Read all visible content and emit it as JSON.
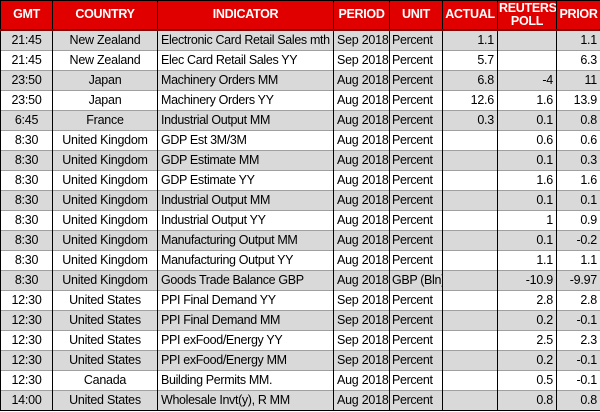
{
  "title": "Economic calendar release table",
  "colors": {
    "header_bg": "#e00000",
    "header_text": "#ffffff",
    "row_shaded": "#d9d9d9",
    "row_plain": "#ffffff",
    "grid_dark": "#000000",
    "grid_light": "#a0a0a0",
    "header_underline": "#8a0000",
    "cell_text": "#000000"
  },
  "chart_data": {
    "type": "table",
    "legend_position": "none",
    "grid": true,
    "columns": [
      "GMT",
      "COUNTRY",
      "INDICATOR",
      "PERIOD",
      "UNIT",
      "ACTUAL",
      "REUTERS POLL",
      "PRIOR"
    ],
    "rows": [
      [
        "21:45",
        "New Zealand",
        "Electronic Card Retail Sales mth",
        "Sep 2018",
        "Percent",
        "1.1",
        "",
        "1.1"
      ],
      [
        "21:45",
        "New Zealand",
        "Elec Card Retail Sales YY",
        "Sep 2018",
        "Percent",
        "5.7",
        "",
        "6.3"
      ],
      [
        "23:50",
        "Japan",
        "Machinery Orders MM",
        "Aug 2018",
        "Percent",
        "6.8",
        "-4",
        "11"
      ],
      [
        "23:50",
        "Japan",
        "Machinery Orders YY",
        "Aug 2018",
        "Percent",
        "12.6",
        "1.6",
        "13.9"
      ],
      [
        "6:45",
        "France",
        "Industrial Output MM",
        "Aug 2018",
        "Percent",
        "0.3",
        "0.1",
        "0.8"
      ],
      [
        "8:30",
        "United Kingdom",
        "GDP Est 3M/3M",
        "Aug 2018",
        "Percent",
        "",
        "0.6",
        "0.6"
      ],
      [
        "8:30",
        "United Kingdom",
        "GDP Estimate MM",
        "Aug 2018",
        "Percent",
        "",
        "0.1",
        "0.3"
      ],
      [
        "8:30",
        "United Kingdom",
        "GDP Estimate YY",
        "Aug 2018",
        "Percent",
        "",
        "1.6",
        "1.6"
      ],
      [
        "8:30",
        "United Kingdom",
        "Industrial Output MM",
        "Aug 2018",
        "Percent",
        "",
        "0.1",
        "0.1"
      ],
      [
        "8:30",
        "United Kingdom",
        "Industrial Output YY",
        "Aug 2018",
        "Percent",
        "",
        "1",
        "0.9"
      ],
      [
        "8:30",
        "United Kingdom",
        "Manufacturing Output MM",
        "Aug 2018",
        "Percent",
        "",
        "0.1",
        "-0.2"
      ],
      [
        "8:30",
        "United Kingdom",
        "Manufacturing Output YY",
        "Aug 2018",
        "Percent",
        "",
        "1.1",
        "1.1"
      ],
      [
        "8:30",
        "United Kingdom",
        "Goods Trade Balance GBP",
        "Aug 2018",
        "GBP (Bln)",
        "",
        "-10.9",
        "-9.97"
      ],
      [
        "12:30",
        "United States",
        "PPI Final Demand YY",
        "Sep 2018",
        "Percent",
        "",
        "2.8",
        "2.8"
      ],
      [
        "12:30",
        "United States",
        "PPI Final Demand MM",
        "Sep 2018",
        "Percent",
        "",
        "0.2",
        "-0.1"
      ],
      [
        "12:30",
        "United States",
        "PPI exFood/Energy YY",
        "Sep 2018",
        "Percent",
        "",
        "2.5",
        "2.3"
      ],
      [
        "12:30",
        "United States",
        "PPI exFood/Energy MM",
        "Sep 2018",
        "Percent",
        "",
        "0.2",
        "-0.1"
      ],
      [
        "12:30",
        "Canada",
        "Building Permits MM.",
        "Aug 2018",
        "Percent",
        "",
        "0.5",
        "-0.1"
      ],
      [
        "14:00",
        "United States",
        "Wholesale Invt(y), R MM",
        "Aug 2018",
        "Percent",
        "",
        "0.8",
        "0.8"
      ]
    ]
  },
  "column_keys": [
    "gmt",
    "country",
    "indicator",
    "period",
    "unit",
    "actual",
    "poll",
    "prior"
  ]
}
